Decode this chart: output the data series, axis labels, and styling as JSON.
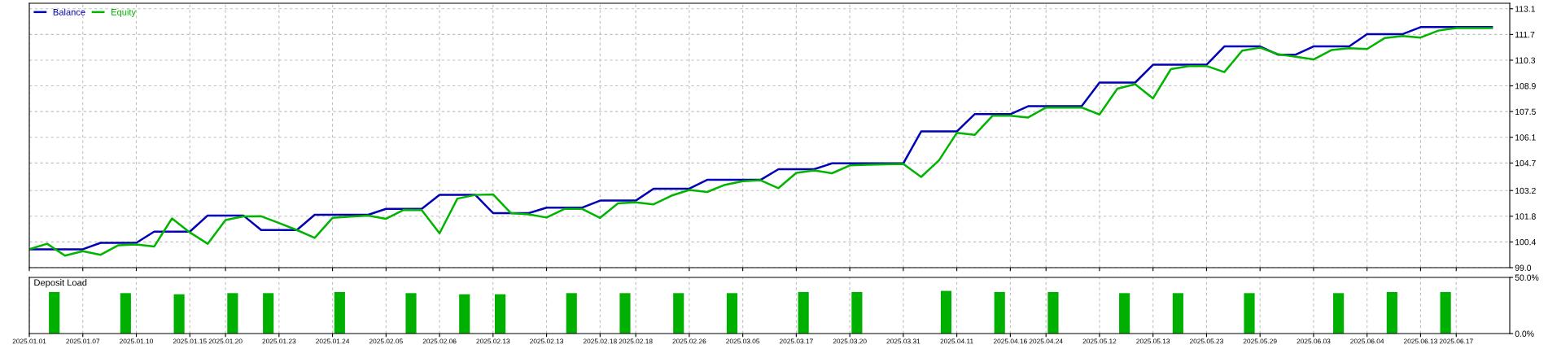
{
  "chart_data": [
    {
      "type": "line",
      "categories": [
        "2025.01.01",
        null,
        null,
        "2025.01.07",
        null,
        null,
        "2025.01.10",
        null,
        null,
        "2025.01.15",
        null,
        "2025.01.20",
        null,
        null,
        "2025.01.23",
        null,
        null,
        "2025.01.24",
        null,
        null,
        "2025.02.05",
        null,
        null,
        "2025.02.06",
        null,
        null,
        "2025.02.13",
        null,
        null,
        "2025.02.13",
        null,
        null,
        "2025.02.18",
        null,
        "2025.02.18",
        null,
        null,
        "2025.02.26",
        null,
        null,
        "2025.03.05",
        null,
        null,
        "2025.03.17",
        null,
        null,
        "2025.03.20",
        null,
        null,
        "2025.03.31",
        null,
        null,
        "2025.04.11",
        null,
        null,
        "2025.04.16",
        null,
        "2025.04.24",
        null,
        null,
        "2025.05.12",
        null,
        null,
        "2025.05.13",
        null,
        null,
        "2025.05.23",
        null,
        null,
        "2025.05.29",
        null,
        null,
        "2025.06.03",
        null,
        null,
        "2025.06.04",
        null,
        null,
        "2025.06.13",
        null,
        "2025.06.17",
        null,
        null
      ],
      "ylim": [
        99.0,
        113.4
      ],
      "yticks": [
        {
          "value": 99.0,
          "label": "99.0"
        },
        100.4,
        101.8,
        103.2,
        104.7,
        106.1,
        107.5,
        108.9,
        110.3,
        111.7,
        113.1
      ],
      "tick_labels": "y",
      "grid": true,
      "legend": "top left",
      "marker": "none",
      "line_style": "solid",
      "series": [
        {
          "name": "Balance",
          "color": "#0000b4",
          "values": [
            100.0,
            100.0,
            100.0,
            100.0,
            100.35,
            100.35,
            100.35,
            100.96,
            100.96,
            100.96,
            101.84,
            101.84,
            101.84,
            101.05,
            101.05,
            101.05,
            101.88,
            101.88,
            101.88,
            101.88,
            102.2,
            102.2,
            102.2,
            102.97,
            102.97,
            102.97,
            101.97,
            101.97,
            101.97,
            102.27,
            102.27,
            102.27,
            102.65,
            102.65,
            102.65,
            103.3,
            103.3,
            103.3,
            103.78,
            103.78,
            103.78,
            103.78,
            104.36,
            104.36,
            104.36,
            104.68,
            104.68,
            104.68,
            104.68,
            104.68,
            106.42,
            106.42,
            106.42,
            107.36,
            107.36,
            107.36,
            107.79,
            107.79,
            107.79,
            107.79,
            109.08,
            109.08,
            109.08,
            110.05,
            110.05,
            110.05,
            110.05,
            111.05,
            111.05,
            111.05,
            110.6,
            110.6,
            111.05,
            111.05,
            111.05,
            111.72,
            111.72,
            111.72,
            112.1,
            112.1,
            112.1,
            112.1,
            112.1
          ]
        },
        {
          "name": "Equity",
          "color": "#00b400",
          "values": [
            100.0,
            100.3,
            99.65,
            99.9,
            99.7,
            100.22,
            100.26,
            100.15,
            101.68,
            100.92,
            100.3,
            101.59,
            101.79,
            101.8,
            101.43,
            101.05,
            100.62,
            101.71,
            101.78,
            101.84,
            101.66,
            102.15,
            102.13,
            100.87,
            102.76,
            102.96,
            102.99,
            101.97,
            101.9,
            101.73,
            102.2,
            102.2,
            101.71,
            102.5,
            102.56,
            102.45,
            102.92,
            103.23,
            103.12,
            103.51,
            103.71,
            103.76,
            103.33,
            104.16,
            104.29,
            104.14,
            104.57,
            104.6,
            104.63,
            104.65,
            103.94,
            104.84,
            106.34,
            106.23,
            107.27,
            107.27,
            107.18,
            107.72,
            107.72,
            107.72,
            107.34,
            108.75,
            108.99,
            108.22,
            109.81,
            109.98,
            109.98,
            109.65,
            110.82,
            110.98,
            110.63,
            110.49,
            110.34,
            110.85,
            110.95,
            110.91,
            111.51,
            111.62,
            111.53,
            111.91,
            112.05,
            112.05,
            112.05
          ]
        }
      ]
    },
    {
      "type": "bar",
      "title": "Deposit Load",
      "categories": [
        "2025.01.01",
        null,
        null,
        "2025.01.07",
        null,
        null,
        "2025.01.10",
        null,
        null,
        "2025.01.15",
        null,
        "2025.01.20",
        null,
        null,
        "2025.01.23",
        null,
        null,
        "2025.01.24",
        null,
        null,
        "2025.02.05",
        null,
        null,
        "2025.02.06",
        null,
        null,
        "2025.02.13",
        null,
        null,
        "2025.02.13",
        null,
        null,
        "2025.02.18",
        null,
        "2025.02.18",
        null,
        null,
        "2025.02.26",
        null,
        null,
        "2025.03.05",
        null,
        null,
        "2025.03.17",
        null,
        null,
        "2025.03.20",
        null,
        null,
        "2025.03.31",
        null,
        null,
        "2025.04.11",
        null,
        null,
        "2025.04.16",
        null,
        "2025.04.24",
        null,
        null,
        "2025.05.12",
        null,
        null,
        "2025.05.13",
        null,
        null,
        "2025.05.23",
        null,
        null,
        "2025.05.29",
        null,
        null,
        "2025.06.03",
        null,
        null,
        "2025.06.04",
        null,
        null,
        "2025.06.13",
        null,
        "2025.06.17",
        null,
        null
      ],
      "ylim": [
        0,
        50
      ],
      "yticks": [
        {
          "value": 0,
          "label": "0.0%"
        },
        {
          "value": 50,
          "label": "50.0%"
        }
      ],
      "grid": "x",
      "color": "#00b000",
      "values": [
        null,
        37,
        null,
        null,
        null,
        36,
        null,
        null,
        35,
        null,
        null,
        36,
        null,
        36,
        null,
        null,
        null,
        37,
        null,
        null,
        null,
        36,
        null,
        null,
        35,
        null,
        35,
        null,
        null,
        null,
        36,
        null,
        null,
        36,
        null,
        null,
        36,
        null,
        null,
        36,
        null,
        null,
        null,
        37,
        null,
        null,
        37,
        null,
        null,
        null,
        null,
        38,
        null,
        null,
        37,
        null,
        null,
        37,
        null,
        null,
        null,
        36,
        null,
        null,
        36,
        null,
        null,
        null,
        36,
        null,
        null,
        null,
        null,
        36,
        null,
        null,
        37,
        null,
        null,
        37,
        null,
        null,
        null
      ]
    }
  ]
}
